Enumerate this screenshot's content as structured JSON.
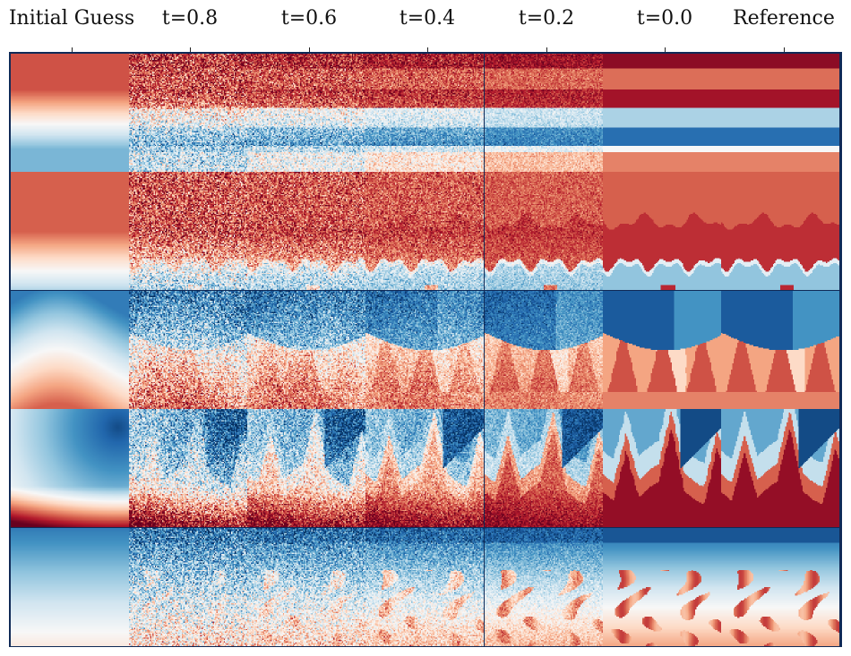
{
  "figure": {
    "columns": [
      "Initial Guess",
      "t=0.8",
      "t=0.6",
      "t=0.4",
      "t=0.2",
      "t=0.0",
      "Reference"
    ],
    "row_count": 5,
    "colormap": {
      "name": "RdBu",
      "stops": [
        "#67001f",
        "#b2182b",
        "#d6604d",
        "#f4a582",
        "#fddbc7",
        "#f7f7f7",
        "#d1e5f0",
        "#92c5de",
        "#4393c3",
        "#2166ac",
        "#053061"
      ]
    },
    "frame_color": "#102a57",
    "background_color": "#ffffff"
  }
}
